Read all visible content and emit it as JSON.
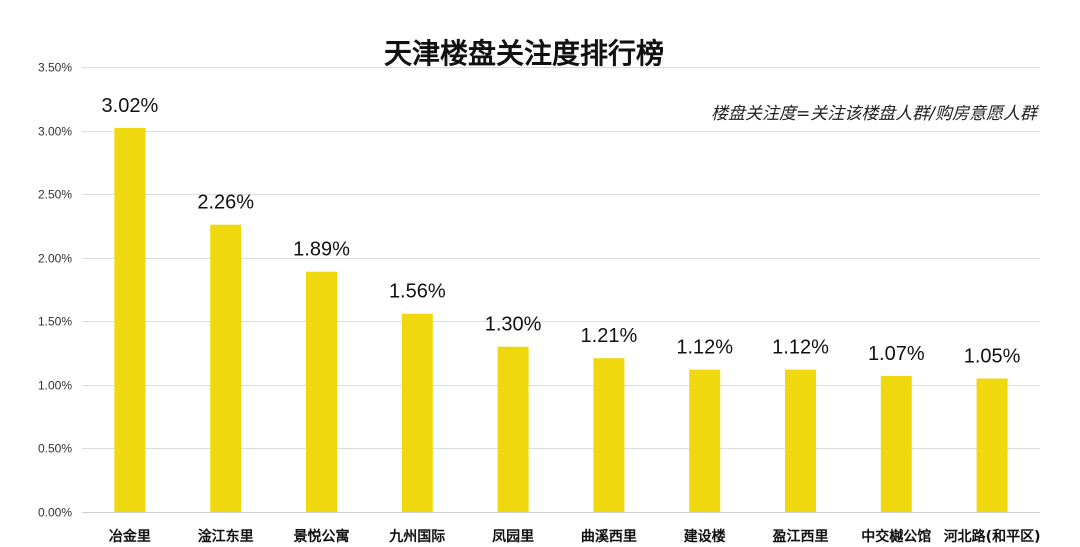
{
  "chart_data": {
    "type": "bar",
    "title": "天津楼盘关注度排行榜",
    "note": "楼盘关注度=关注该楼盘人群/购房意愿人群",
    "categories": [
      "冶金里",
      "淦江东里",
      "景悦公寓",
      "九州国际",
      "凤园里",
      "曲溪西里",
      "建设楼",
      "盈江西里",
      "中交樾公馆",
      "河北路(和平区)"
    ],
    "values": [
      3.02,
      2.26,
      1.89,
      1.56,
      1.3,
      1.21,
      1.12,
      1.12,
      1.07,
      1.05
    ],
    "data_labels": [
      "3.02%",
      "2.26%",
      "1.89%",
      "1.56%",
      "1.30%",
      "1.21%",
      "1.12%",
      "1.12%",
      "1.07%",
      "1.05%"
    ],
    "ylim": [
      0,
      3.5
    ],
    "yticks": [
      0,
      0.5,
      1.0,
      1.5,
      2.0,
      2.5,
      3.0,
      3.5
    ],
    "ytick_labels": [
      "0.00%",
      "0.50%",
      "1.00%",
      "1.50%",
      "2.00%",
      "2.50%",
      "3.00%",
      "3.50%"
    ],
    "xlabel": "",
    "ylabel": "",
    "grid": true,
    "bar_color": "#f0d80e"
  }
}
